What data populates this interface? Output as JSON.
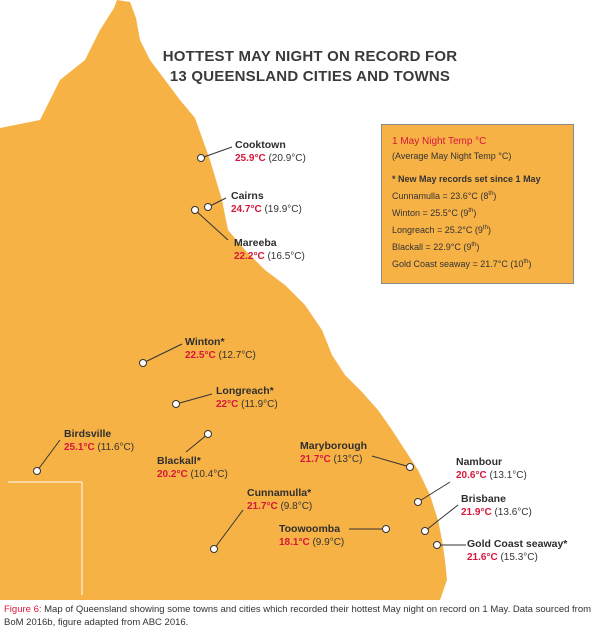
{
  "title": {
    "line1": "HOTTEST MAY NIGHT ON RECORD FOR",
    "line2": "13 QUEENSLAND CITIES AND TOWNS"
  },
  "colors": {
    "land": "#f7b246",
    "sea": "#ffffff",
    "record": "#d6173b",
    "border": "#ffffff"
  },
  "places": [
    {
      "name": "Cooktown",
      "temp": "25.9°C",
      "avg": "(20.9°C)"
    },
    {
      "name": "Cairns",
      "temp": "24.7°C",
      "avg": "(19.9°C)"
    },
    {
      "name": "Mareeba",
      "temp": "22.2°C",
      "avg": "(16.5°C)"
    },
    {
      "name": "Winton*",
      "temp": "22.5°C",
      "avg": "(12.7°C)"
    },
    {
      "name": "Longreach*",
      "temp": "22°C",
      "avg": "(11.9°C)"
    },
    {
      "name": "Birdsville",
      "temp": "25.1°C",
      "avg": "(11.6°C)"
    },
    {
      "name": "Blackall*",
      "temp": "20.2°C",
      "avg": "(10.4°C)"
    },
    {
      "name": "Maryborough",
      "temp": "21.7°C",
      "avg": "(13°C)"
    },
    {
      "name": "Nambour",
      "temp": "20.6°C",
      "avg": "(13.1°C)"
    },
    {
      "name": "Cunnamulla*",
      "temp": "21.7°C",
      "avg": "(9.8°C)"
    },
    {
      "name": "Brisbane",
      "temp": "21.9°C",
      "avg": "(13.6°C)"
    },
    {
      "name": "Toowoomba",
      "temp": "18.1°C",
      "avg": "(9.9°C)"
    },
    {
      "name": "Gold Coast seaway*",
      "temp": "21.6°C",
      "avg": "(15.3°C)"
    }
  ],
  "legend": {
    "title": "1 May Night Temp °C",
    "subtitle": "(Average May Night Temp °C)",
    "records_heading": "* New May records set since 1 May",
    "records": [
      {
        "text": "Cunnamulla = 23.6°C (8",
        "sup": "th",
        "close": ")"
      },
      {
        "text": "Winton = 25.5°C (9",
        "sup": "th",
        "close": ")"
      },
      {
        "text": "Longreach = 25.2°C (9",
        "sup": "th",
        "close": ")"
      },
      {
        "text": "Blackall = 22.9°C (9",
        "sup": "th",
        "close": ")"
      },
      {
        "text": "Gold Coast seaway = 21.7°C (10",
        "sup": "th",
        "close": ")"
      }
    ]
  },
  "caption": {
    "figure": "Figure 6:",
    "text": " Map of Queensland showing some towns and cities which recorded their hottest May night on record on 1 May. Data sourced from BoM 2016b, figure adapted from ABC 2016."
  }
}
